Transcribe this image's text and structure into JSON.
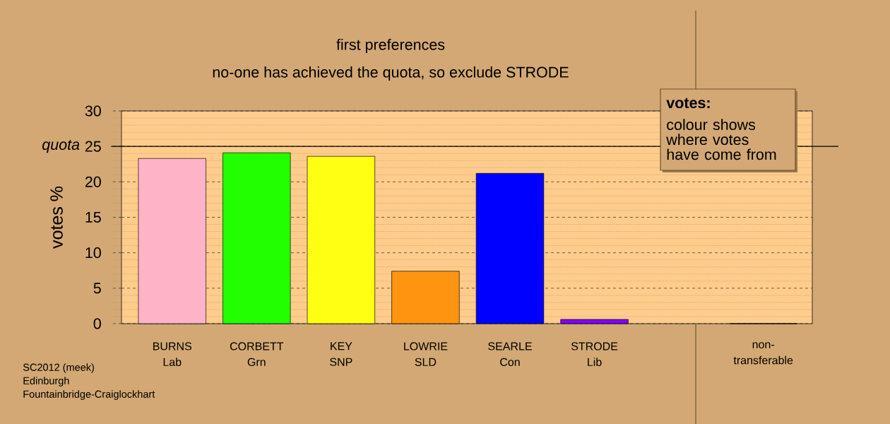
{
  "chart_data": {
    "type": "bar",
    "title": "first preferences",
    "subtitle": "no-one has achieved the quota, so exclude STRODE",
    "ylabel": "votes %",
    "legend_title": "votes:",
    "categories": [
      "BURNS Lab",
      "CORBETT Grn",
      "KEY SNP",
      "LOWRIE SLD",
      "SEARLE Con",
      "STRODE Lib",
      null,
      "non-transferable"
    ],
    "values": [
      23.3,
      24.1,
      23.6,
      7.4,
      21.2,
      0.6,
      null,
      0
    ],
    "colors": [
      "#ffb3c6",
      "#22ff00",
      "#ffff14",
      "#ff9410",
      "#0000ff",
      "#8000ff",
      null,
      "#808080"
    ],
    "ylim": [
      0,
      30
    ],
    "yticks": [
      0,
      5,
      10,
      15,
      20,
      25,
      30
    ],
    "grid": "y",
    "ref_lines": [
      {
        "axis": "y",
        "value": 25,
        "label": "quota"
      }
    ],
    "annotations": [
      "colour shows where votes have come from",
      "SC2012 (meek)",
      "Edinburgh",
      "Fountainbridge-Craiglockhart"
    ]
  }
}
